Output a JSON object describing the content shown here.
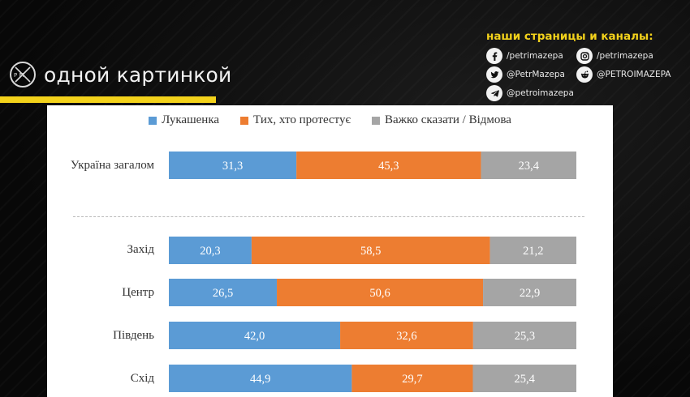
{
  "brand": {
    "name": "одной картинкой",
    "logo_letters": "P M"
  },
  "links": {
    "title": "наши страницы и каналы:",
    "items": [
      {
        "icon": "facebook-icon",
        "handle": "/petrimazepa"
      },
      {
        "icon": "instagram-icon",
        "handle": "/petrimazepa"
      },
      {
        "icon": "twitter-icon",
        "handle": "@PetrMazepa"
      },
      {
        "icon": "reddit-icon",
        "handle": "@PETROIMAZEPA"
      },
      {
        "icon": "telegram-icon",
        "handle": "@petroimazepa"
      }
    ]
  },
  "colors": {
    "accent": "#f3d21b",
    "series": [
      "#5b9bd5",
      "#ed7d31",
      "#a5a5a5"
    ]
  },
  "chart_data": {
    "type": "bar",
    "orientation": "horizontal",
    "stacked": true,
    "legend_position": "top",
    "categories": [
      "Україна загалом",
      "Захід",
      "Центр",
      "Південь",
      "Схід"
    ],
    "series": [
      {
        "name": "Лукашенка",
        "values": [
          31.3,
          20.3,
          26.5,
          42.0,
          44.9
        ],
        "labels": [
          "31,3",
          "20,3",
          "26,5",
          "42,0",
          "44,9"
        ]
      },
      {
        "name": "Тих, хто протестує",
        "values": [
          45.3,
          58.5,
          50.6,
          32.6,
          29.7
        ],
        "labels": [
          "45,3",
          "58,5",
          "50,6",
          "32,6",
          "29,7"
        ]
      },
      {
        "name": "Важко сказати / Відмова",
        "values": [
          23.4,
          21.2,
          22.9,
          25.3,
          25.4
        ],
        "labels": [
          "23,4",
          "21,2",
          "22,9",
          "25,3",
          "25,4"
        ]
      }
    ]
  }
}
